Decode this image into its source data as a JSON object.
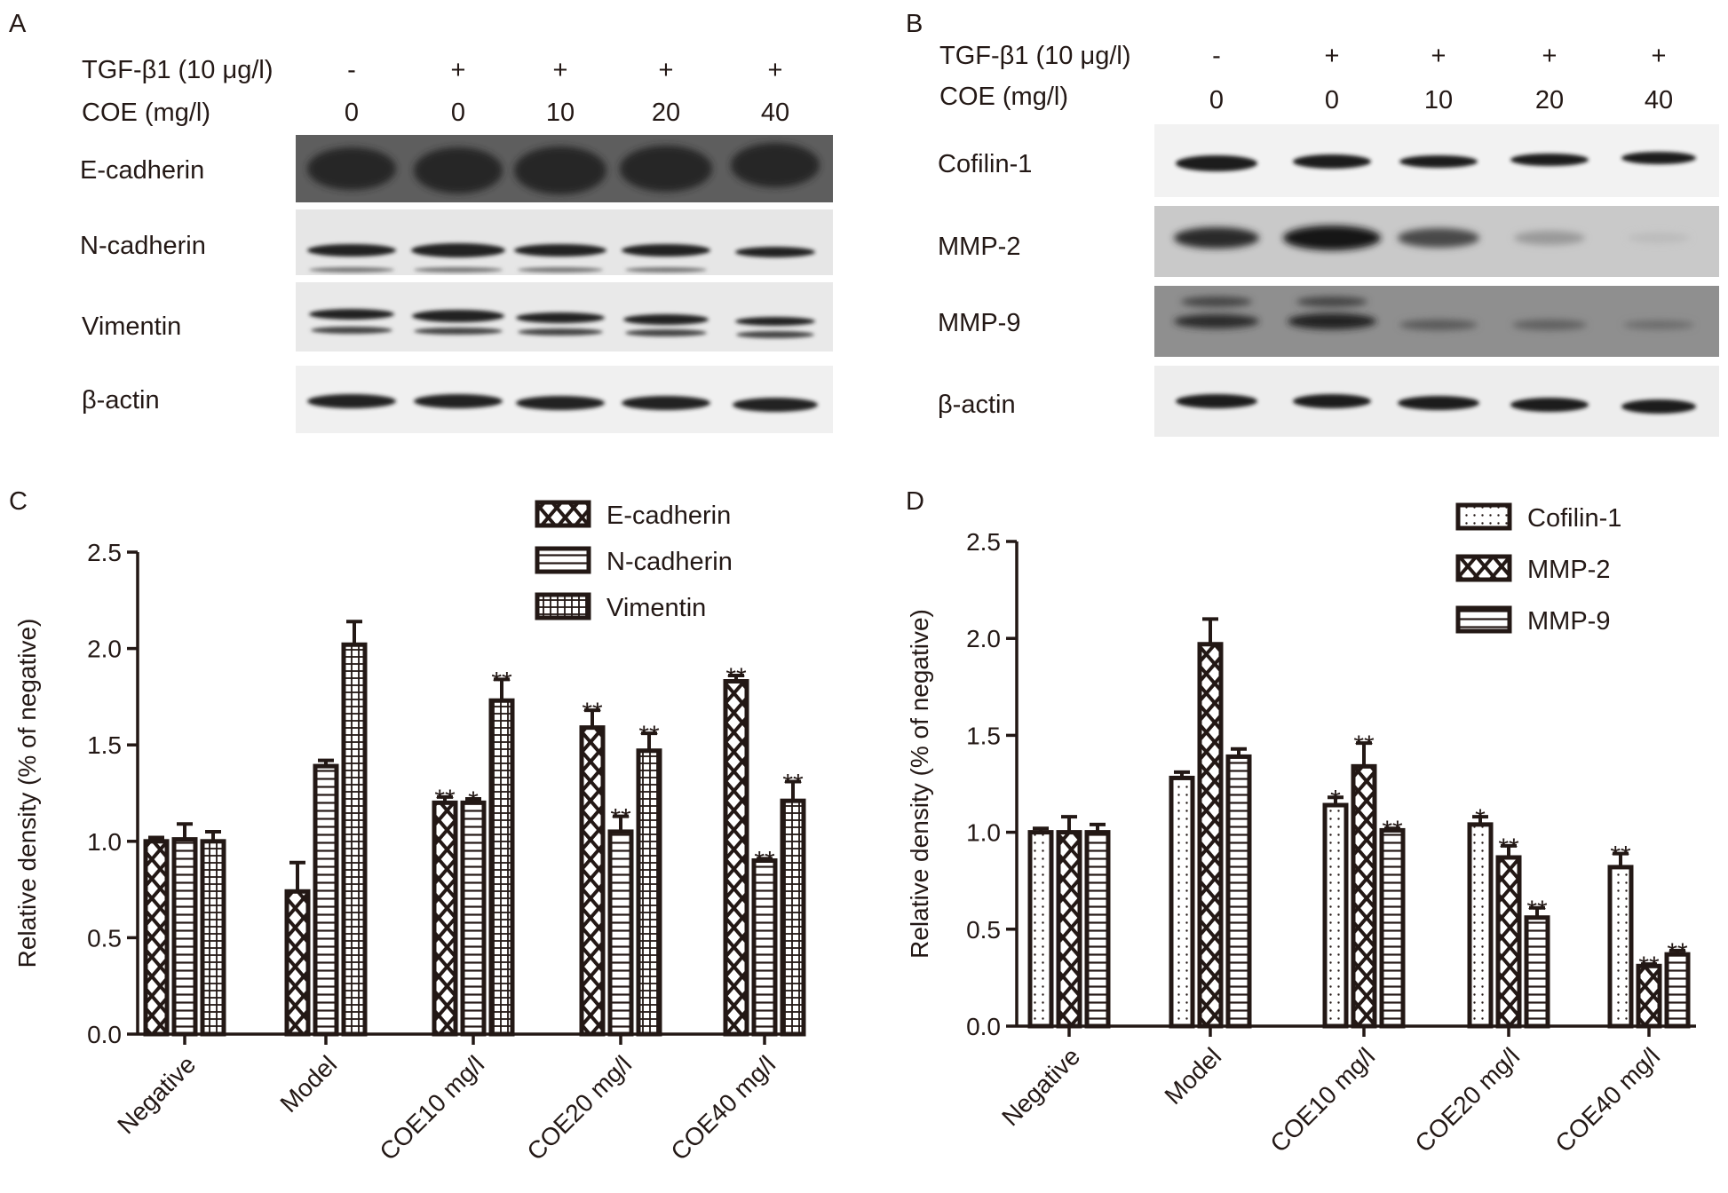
{
  "panels": {
    "A": "A",
    "B": "B",
    "C": "C",
    "D": "D"
  },
  "blot_A": {
    "row_labels": [
      "TGF-β1 (10 μg/l)",
      "COE (mg/l)"
    ],
    "tgf": [
      "-",
      "+",
      "+",
      "+",
      "+"
    ],
    "coe": [
      "0",
      "0",
      "10",
      "20",
      "40"
    ],
    "bands": [
      "E-cadherin",
      "N-cadherin",
      "Vimentin",
      "β-actin"
    ]
  },
  "blot_B": {
    "row_labels": [
      "TGF-β1 (10 μg/l)",
      "COE (mg/l)"
    ],
    "tgf": [
      "-",
      "+",
      "+",
      "+",
      "+"
    ],
    "coe": [
      "0",
      "0",
      "10",
      "20",
      "40"
    ],
    "bands": [
      "Cofilin-1",
      "MMP-2",
      "MMP-9",
      "β-actin"
    ]
  },
  "colors": {
    "bar_edge": "#231815",
    "background": "#ffffff"
  },
  "chart_data": [
    {
      "panel": "C",
      "type": "bar",
      "categories": [
        "Negative",
        "Model",
        "COE10 mg/l",
        "COE20 mg/l",
        "COE40 mg/l"
      ],
      "ylabel": "Relative density (% of negative)",
      "ylim": [
        0,
        2.5
      ],
      "yticks": [
        "0.0",
        "0.5",
        "1.0",
        "1.5",
        "2.0",
        "2.5"
      ],
      "legend_position": "top-right",
      "series": [
        {
          "name": "E-cadherin",
          "pattern": "cross",
          "values": [
            1.0,
            0.74,
            1.2,
            1.59,
            1.83
          ],
          "errors": [
            0.02,
            0.15,
            0.03,
            0.09,
            0.03
          ],
          "sig": [
            "",
            "",
            "**",
            "**",
            "**"
          ]
        },
        {
          "name": "N-cadherin",
          "pattern": "hlines",
          "values": [
            1.01,
            1.39,
            1.2,
            1.05,
            0.9
          ],
          "errors": [
            0.08,
            0.03,
            0.02,
            0.08,
            0.01
          ],
          "sig": [
            "",
            "",
            "*",
            "**",
            "**"
          ]
        },
        {
          "name": "Vimentin",
          "pattern": "grid",
          "values": [
            1.0,
            2.02,
            1.73,
            1.47,
            1.21
          ],
          "errors": [
            0.05,
            0.12,
            0.11,
            0.09,
            0.1
          ],
          "sig": [
            "",
            "",
            "**",
            "**",
            "**"
          ]
        }
      ]
    },
    {
      "panel": "D",
      "type": "bar",
      "categories": [
        "Negative",
        "Model",
        "COE10 mg/l",
        "COE20 mg/l",
        "COE40 mg/l"
      ],
      "ylabel": "Relative density (% of negative)",
      "ylim": [
        0,
        2.5
      ],
      "yticks": [
        "0.0",
        "0.5",
        "1.0",
        "1.5",
        "2.0",
        "2.5"
      ],
      "legend_position": "top-right",
      "series": [
        {
          "name": "Cofilin-1",
          "pattern": "dots",
          "values": [
            1.0,
            1.28,
            1.14,
            1.04,
            0.82
          ],
          "errors": [
            0.02,
            0.03,
            0.04,
            0.04,
            0.07
          ],
          "sig": [
            "",
            "",
            "*",
            "*",
            "**"
          ]
        },
        {
          "name": "MMP-2",
          "pattern": "cross",
          "values": [
            1.0,
            1.97,
            1.34,
            0.87,
            0.31
          ],
          "errors": [
            0.08,
            0.13,
            0.12,
            0.06,
            0.01
          ],
          "sig": [
            "",
            "",
            "**",
            "**",
            "**"
          ]
        },
        {
          "name": "MMP-9",
          "pattern": "hlines",
          "values": [
            1.0,
            1.39,
            1.01,
            0.56,
            0.37
          ],
          "errors": [
            0.04,
            0.04,
            0.01,
            0.05,
            0.02
          ],
          "sig": [
            "",
            "",
            "**",
            "**",
            "**"
          ]
        }
      ]
    }
  ]
}
